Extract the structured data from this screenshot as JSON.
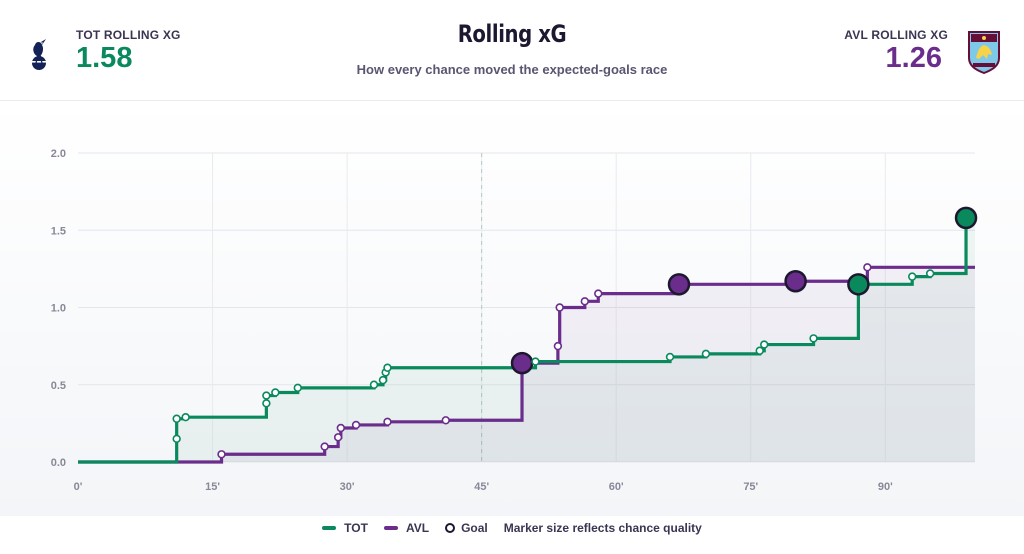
{
  "header": {
    "title": "Rolling xG",
    "subtitle": "How every chance moved the expected-goals race",
    "home": {
      "label": "TOT ROLLING XG",
      "value": "1.58",
      "color": "#0a8a5c",
      "crest_icon": "tottenham-crest-icon"
    },
    "away": {
      "label": "AVL ROLLING XG",
      "value": "1.26",
      "color": "#6b2d8c",
      "crest_icon": "aston-villa-crest-icon"
    }
  },
  "legend": {
    "home_label": "TOT",
    "away_label": "AVL",
    "goal_label": "Goal",
    "note": "Marker size reflects chance quality"
  },
  "chart_data": {
    "type": "line",
    "step": true,
    "x_range": [
      0,
      100
    ],
    "xlim": [
      0,
      100
    ],
    "ylim": [
      0,
      2.0
    ],
    "x_ticks": [
      0,
      15,
      30,
      45,
      60,
      75,
      90
    ],
    "x_tick_labels": [
      "0'",
      "15'",
      "30'",
      "45'",
      "60'",
      "75'",
      "90'"
    ],
    "y_ticks": [
      0,
      0.5,
      1.0,
      1.5,
      2.0
    ],
    "y_tick_labels": [
      "0.0",
      "0.5",
      "1.0",
      "1.5",
      "2.0"
    ],
    "halftime_minute": 45,
    "grid": true,
    "series": [
      {
        "name": "TOT",
        "color": "#0a8a5c",
        "final": 1.58,
        "shots": [
          {
            "minute": 11,
            "xg": 0.15,
            "goal": false
          },
          {
            "minute": 11,
            "xg": 0.28,
            "goal": false
          },
          {
            "minute": 12,
            "xg": 0.29,
            "goal": false
          },
          {
            "minute": 21,
            "xg": 0.38,
            "goal": false
          },
          {
            "minute": 21,
            "xg": 0.43,
            "goal": false
          },
          {
            "minute": 22,
            "xg": 0.45,
            "goal": false
          },
          {
            "minute": 24.5,
            "xg": 0.48,
            "goal": false
          },
          {
            "minute": 33,
            "xg": 0.5,
            "goal": false
          },
          {
            "minute": 34,
            "xg": 0.53,
            "goal": false
          },
          {
            "minute": 34.3,
            "xg": 0.58,
            "goal": false
          },
          {
            "minute": 34.5,
            "xg": 0.61,
            "goal": false
          },
          {
            "minute": 51,
            "xg": 0.65,
            "goal": false
          },
          {
            "minute": 66,
            "xg": 0.68,
            "goal": false
          },
          {
            "minute": 70,
            "xg": 0.7,
            "goal": false
          },
          {
            "minute": 76,
            "xg": 0.72,
            "goal": false
          },
          {
            "minute": 76.5,
            "xg": 0.76,
            "goal": false
          },
          {
            "minute": 82,
            "xg": 0.8,
            "goal": false
          },
          {
            "minute": 87,
            "xg": 1.15,
            "goal": true
          },
          {
            "minute": 93,
            "xg": 1.2,
            "goal": false
          },
          {
            "minute": 95,
            "xg": 1.22,
            "goal": false
          },
          {
            "minute": 99,
            "xg": 1.58,
            "goal": true
          }
        ]
      },
      {
        "name": "AVL",
        "color": "#6b2d8c",
        "final": 1.26,
        "shots": [
          {
            "minute": 16,
            "xg": 0.05,
            "goal": false
          },
          {
            "minute": 27.5,
            "xg": 0.1,
            "goal": false
          },
          {
            "minute": 29,
            "xg": 0.16,
            "goal": false
          },
          {
            "minute": 29.3,
            "xg": 0.22,
            "goal": false
          },
          {
            "minute": 31,
            "xg": 0.24,
            "goal": false
          },
          {
            "minute": 34.5,
            "xg": 0.26,
            "goal": false
          },
          {
            "minute": 41,
            "xg": 0.27,
            "goal": false
          },
          {
            "minute": 49.5,
            "xg": 0.64,
            "goal": true
          },
          {
            "minute": 53.5,
            "xg": 0.75,
            "goal": false
          },
          {
            "minute": 53.7,
            "xg": 1.0,
            "goal": false
          },
          {
            "minute": 56.5,
            "xg": 1.04,
            "goal": false
          },
          {
            "minute": 58,
            "xg": 1.09,
            "goal": false
          },
          {
            "minute": 67,
            "xg": 1.15,
            "goal": true
          },
          {
            "minute": 80,
            "xg": 1.17,
            "goal": true
          },
          {
            "minute": 88,
            "xg": 1.26,
            "goal": false
          }
        ]
      }
    ]
  }
}
